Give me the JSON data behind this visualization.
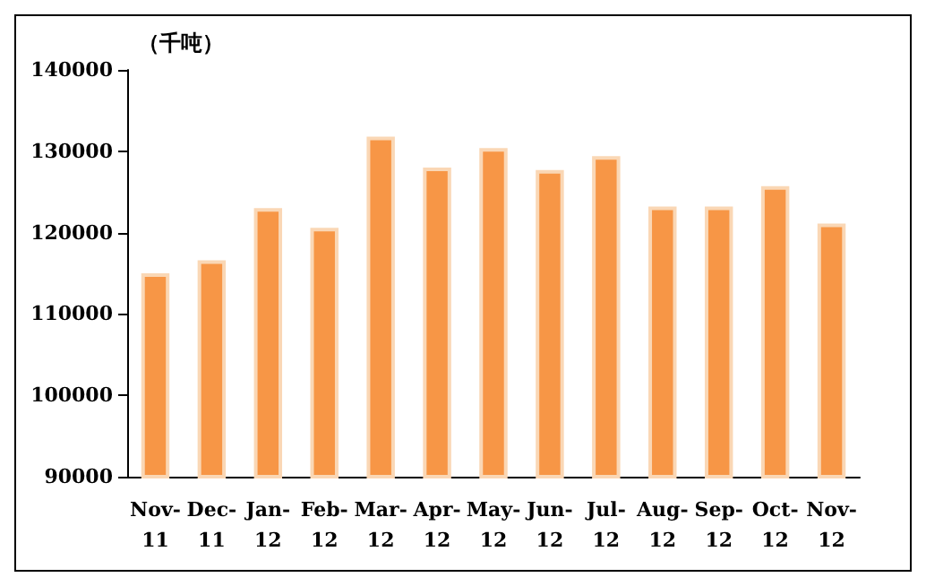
{
  "chart_data": {
    "type": "bar",
    "ylabel": "（千吨）",
    "categories": [
      "Nov-11",
      "Dec-11",
      "Jan-12",
      "Feb-12",
      "Mar-12",
      "Apr-12",
      "May-12",
      "Jun-12",
      "Jul-12",
      "Aug-12",
      "Sep-12",
      "Oct-12",
      "Nov-12"
    ],
    "values": [
      115000,
      116600,
      123000,
      120600,
      131800,
      128000,
      130400,
      127700,
      129400,
      123200,
      123200,
      125700,
      121100
    ],
    "color": "#f79646",
    "ylim": [
      90000,
      140000
    ],
    "yticks": [
      90000,
      100000,
      110000,
      120000,
      130000,
      140000
    ],
    "grid": false
  }
}
